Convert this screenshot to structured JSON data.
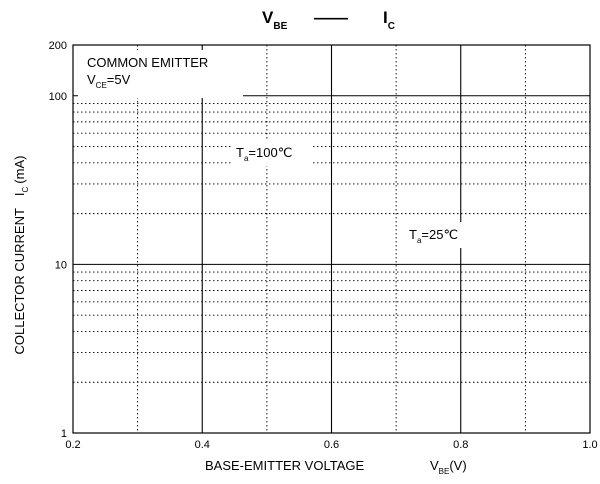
{
  "chart_data": {
    "type": "line",
    "title": {
      "left_symbol": "V",
      "left_sub": "BE",
      "separator": "——",
      "right_symbol": "I",
      "right_sub": "C"
    },
    "xlabel": {
      "text": "BASE-EMITTER VOLTAGE",
      "symbol": "V",
      "symbol_sub": "BE",
      "unit": "(V)"
    },
    "ylabel": {
      "prefix": "COLLECTOR CURRENT",
      "symbol": "I",
      "symbol_sub": "C",
      "unit": "(mA)"
    },
    "xlim": [
      0.2,
      1.0
    ],
    "ylim": [
      1,
      200
    ],
    "y_scale": "log",
    "x_ticks": [
      "0.2",
      "0.4",
      "0.6",
      "0.8",
      "1.0"
    ],
    "y_ticks": [
      "1",
      "10",
      "100",
      "200"
    ],
    "grid": true,
    "annotations": {
      "condition_title": "COMMON EMITTER",
      "condition_symbol": "V",
      "condition_sub": "CE",
      "condition_value": "=5V",
      "curve_100": {
        "symbol": "T",
        "sub": "a",
        "value": "=100℃"
      },
      "curve_25": {
        "symbol": "T",
        "sub": "a",
        "value": "=25℃"
      }
    },
    "series": []
  }
}
